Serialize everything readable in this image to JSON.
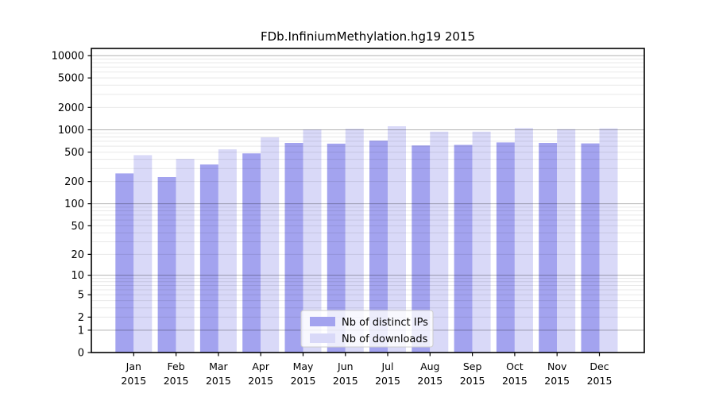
{
  "chart_data": {
    "type": "bar",
    "scale": "log1p",
    "title": "FDb.InfiniumMethylation.hg19 2015",
    "xlabel": "",
    "ylabel": "",
    "categories": [
      [
        "Jan",
        "2015"
      ],
      [
        "Feb",
        "2015"
      ],
      [
        "Mar",
        "2015"
      ],
      [
        "Apr",
        "2015"
      ],
      [
        "May",
        "2015"
      ],
      [
        "Jun",
        "2015"
      ],
      [
        "Jul",
        "2015"
      ],
      [
        "Aug",
        "2015"
      ],
      [
        "Sep",
        "2015"
      ],
      [
        "Oct",
        "2015"
      ],
      [
        "Nov",
        "2015"
      ],
      [
        "Dec",
        "2015"
      ]
    ],
    "series": [
      {
        "name": "Nb of distinct IPs",
        "color": "#a3a3ef",
        "values": [
          258,
          230,
          340,
          480,
          665,
          650,
          715,
          615,
          625,
          675,
          665,
          655
        ]
      },
      {
        "name": "Nb of downloads",
        "color": "#d9d9f8",
        "values": [
          455,
          405,
          545,
          790,
          1010,
          1030,
          1115,
          945,
          945,
          1055,
          1020,
          1045
        ]
      }
    ],
    "yticks": [
      0,
      1,
      2,
      5,
      10,
      20,
      50,
      100,
      200,
      500,
      1000,
      2000,
      5000,
      10000
    ],
    "ylim": [
      0,
      12500
    ],
    "grid": true,
    "legend_position": "bottom-center-inside"
  },
  "colors": {
    "background": "#ffffff",
    "plot_border": "#000000",
    "major_grid": "rgba(0,0,0,0.30)",
    "minor_grid": "rgba(0,0,0,0.09)",
    "tick": "#000000",
    "legend_border": "#cccccc",
    "legend_fill": "rgba(255,255,255,0.8)"
  }
}
